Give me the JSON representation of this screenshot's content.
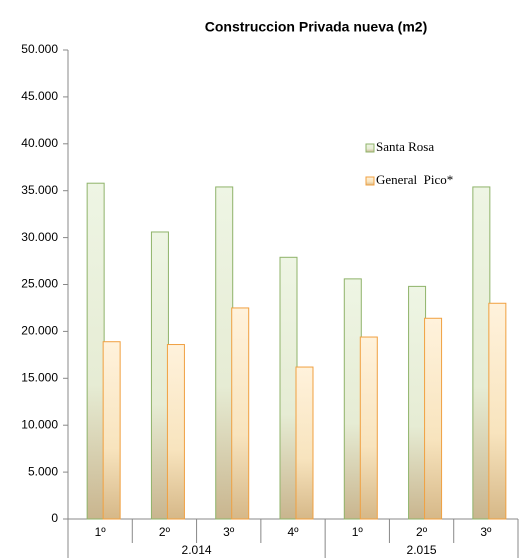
{
  "chart_data": {
    "type": "bar",
    "title": "Construccion Privada nueva (m2)",
    "groups": [
      {
        "label": "2.014",
        "categories": [
          "1º",
          "2º",
          "3º",
          "4º"
        ]
      },
      {
        "label": "2.015",
        "categories": [
          "1º",
          "2º",
          "3º"
        ]
      }
    ],
    "series": [
      {
        "name": "Santa Rosa",
        "color": "#e6f0d8",
        "values": [
          35800,
          30600,
          35400,
          27900,
          25600,
          24800,
          35400
        ]
      },
      {
        "name": "General  Pico*",
        "color": "#fde7c4",
        "values": [
          18900,
          18600,
          22500,
          16200,
          19400,
          21400,
          23000
        ]
      }
    ],
    "ylim": [
      0,
      50000
    ],
    "yticks": [
      0,
      {
        "value": 5000,
        "label": "5.000"
      },
      {
        "value": 10000,
        "label": "10.000"
      },
      {
        "value": 15000,
        "label": "15.000"
      },
      {
        "value": 20000,
        "label": "20.000"
      },
      {
        "value": 25000,
        "label": "25.000"
      },
      {
        "value": 30000,
        "label": "30.000"
      },
      {
        "value": 35000,
        "label": "35.000"
      },
      {
        "value": 40000,
        "label": "40.000"
      },
      {
        "value": 45000,
        "label": "45.000"
      },
      {
        "value": 50000,
        "label": "50.000"
      }
    ],
    "legend": "upper right",
    "grid": false
  }
}
